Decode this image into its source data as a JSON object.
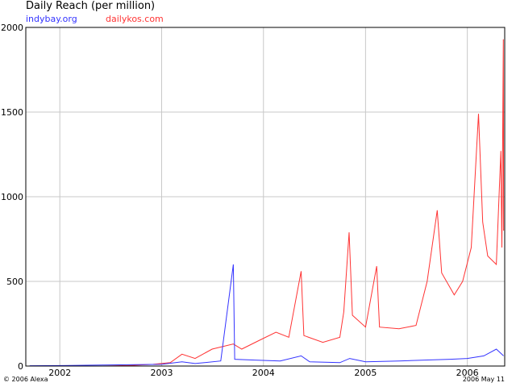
{
  "chart_data": {
    "type": "line",
    "title": "Daily Reach (per million)",
    "xlim": [
      "2001-09-01",
      "2006-05-15"
    ],
    "ylim": [
      0,
      2000
    ],
    "yticks": [
      0,
      500,
      1000,
      1500,
      2000
    ],
    "xticks": [
      "2002",
      "2003",
      "2004",
      "2005",
      "2006"
    ],
    "grid": true,
    "legend": "top-left",
    "series": [
      {
        "name": "indybay.org",
        "color": "#3333ff",
        "points": [
          [
            "2001-09-15",
            2
          ],
          [
            "2002-01-15",
            3
          ],
          [
            "2002-06-01",
            6
          ],
          [
            "2002-10-01",
            8
          ],
          [
            "2003-01-01",
            10
          ],
          [
            "2003-03-15",
            25
          ],
          [
            "2003-05-01",
            15
          ],
          [
            "2003-08-01",
            30
          ],
          [
            "2003-09-15",
            600
          ],
          [
            "2003-09-20",
            40
          ],
          [
            "2003-12-01",
            35
          ],
          [
            "2004-03-01",
            30
          ],
          [
            "2004-05-15",
            60
          ],
          [
            "2004-06-15",
            25
          ],
          [
            "2004-10-01",
            20
          ],
          [
            "2004-11-05",
            45
          ],
          [
            "2005-01-01",
            25
          ],
          [
            "2005-05-01",
            30
          ],
          [
            "2005-08-01",
            35
          ],
          [
            "2005-11-01",
            40
          ],
          [
            "2006-01-01",
            45
          ],
          [
            "2006-03-01",
            60
          ],
          [
            "2006-04-15",
            100
          ],
          [
            "2006-05-11",
            60
          ]
        ]
      },
      {
        "name": "dailykos.com",
        "color": "#ff3333",
        "points": [
          [
            "2001-09-15",
            0
          ],
          [
            "2002-06-01",
            0
          ],
          [
            "2002-09-01",
            3
          ],
          [
            "2002-12-01",
            10
          ],
          [
            "2003-02-01",
            20
          ],
          [
            "2003-03-15",
            70
          ],
          [
            "2003-05-01",
            45
          ],
          [
            "2003-07-01",
            100
          ],
          [
            "2003-09-15",
            130
          ],
          [
            "2003-10-15",
            100
          ],
          [
            "2003-12-15",
            150
          ],
          [
            "2004-02-15",
            200
          ],
          [
            "2004-04-01",
            170
          ],
          [
            "2004-05-15",
            560
          ],
          [
            "2004-05-25",
            180
          ],
          [
            "2004-08-01",
            140
          ],
          [
            "2004-10-01",
            170
          ],
          [
            "2004-10-15",
            320
          ],
          [
            "2004-11-03",
            790
          ],
          [
            "2004-11-15",
            300
          ],
          [
            "2005-01-01",
            230
          ],
          [
            "2005-02-10",
            590
          ],
          [
            "2005-02-20",
            230
          ],
          [
            "2005-05-01",
            220
          ],
          [
            "2005-07-01",
            240
          ],
          [
            "2005-08-10",
            500
          ],
          [
            "2005-09-15",
            920
          ],
          [
            "2005-10-01",
            550
          ],
          [
            "2005-11-15",
            420
          ],
          [
            "2005-12-15",
            500
          ],
          [
            "2006-01-15",
            700
          ],
          [
            "2006-02-10",
            1490
          ],
          [
            "2006-02-25",
            850
          ],
          [
            "2006-03-15",
            650
          ],
          [
            "2006-04-15",
            600
          ],
          [
            "2006-05-01",
            1270
          ],
          [
            "2006-05-05",
            700
          ],
          [
            "2006-05-10",
            1930
          ],
          [
            "2006-05-11",
            800
          ]
        ]
      }
    ]
  },
  "footer": {
    "copyright": "© 2006 Alexa",
    "date": "2006 May 11"
  }
}
